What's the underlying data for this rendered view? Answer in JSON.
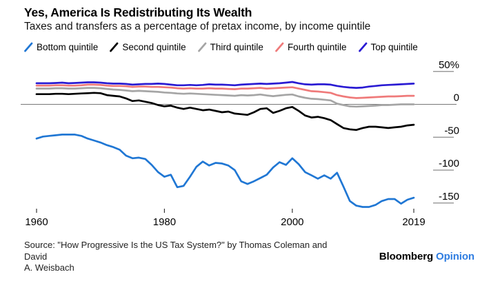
{
  "header": {
    "title": "Yes, America Is Redistributing Its Wealth",
    "subtitle": "Taxes and transfers as a percentage of pretax income, by income quintile"
  },
  "legend": {
    "items": [
      {
        "label": "Bottom quintile",
        "color": "#2077d4"
      },
      {
        "label": "Second quintile",
        "color": "#000000"
      },
      {
        "label": "Third quintile",
        "color": "#a5a5a5"
      },
      {
        "label": "Fourth quintile",
        "color": "#ef7a7a"
      },
      {
        "label": "Top quintile",
        "color": "#2a1bd3"
      }
    ]
  },
  "chart_data": {
    "type": "line",
    "title": "Yes, America Is Redistributing Its Wealth",
    "subtitle": "Taxes and transfers as a percentage of pretax income, by income quintile",
    "xlabel": "",
    "ylabel": "",
    "y_axis_side": "right",
    "grid": false,
    "zero_line": true,
    "legend_position": "top",
    "xlim": [
      1960,
      2019
    ],
    "ylim": [
      -175,
      55
    ],
    "x": [
      1960,
      1961,
      1962,
      1963,
      1964,
      1965,
      1966,
      1967,
      1968,
      1969,
      1970,
      1971,
      1972,
      1973,
      1974,
      1975,
      1976,
      1977,
      1978,
      1979,
      1980,
      1981,
      1982,
      1983,
      1984,
      1985,
      1986,
      1987,
      1988,
      1989,
      1990,
      1991,
      1992,
      1993,
      1994,
      1995,
      1996,
      1997,
      1998,
      1999,
      2000,
      2001,
      2002,
      2003,
      2004,
      2005,
      2006,
      2007,
      2008,
      2009,
      2010,
      2011,
      2012,
      2013,
      2014,
      2015,
      2016,
      2017,
      2018,
      2019
    ],
    "x_ticks": [
      {
        "value": 1960,
        "label": "1960"
      },
      {
        "value": 1980,
        "label": "1980"
      },
      {
        "value": 2000,
        "label": "2000"
      },
      {
        "value": 2019,
        "label": "2019"
      }
    ],
    "y_ticks": [
      {
        "value": 50,
        "label": "50%"
      },
      {
        "value": 0,
        "label": "0"
      },
      {
        "value": -50,
        "label": "-50"
      },
      {
        "value": -100,
        "label": "-100"
      },
      {
        "value": -150,
        "label": "-150"
      }
    ],
    "series": [
      {
        "name": "Bottom quintile",
        "color": "#2077d4",
        "values": [
          -52,
          -49,
          -48,
          -47,
          -46,
          -46,
          -46,
          -48,
          -52,
          -55,
          -58,
          -62,
          -65,
          -69,
          -78,
          -82,
          -81,
          -83,
          -92,
          -103,
          -110,
          -107,
          -126,
          -124,
          -110,
          -95,
          -87,
          -93,
          -89,
          -90,
          -93,
          -100,
          -117,
          -121,
          -117,
          -112,
          -107,
          -96,
          -88,
          -92,
          -82,
          -91,
          -103,
          -108,
          -113,
          -108,
          -113,
          -104,
          -125,
          -147,
          -154,
          -156,
          -156,
          -153,
          -147,
          -144,
          -144,
          -151,
          -145,
          -142
        ]
      },
      {
        "name": "Second quintile",
        "color": "#000000",
        "values": [
          15.5,
          15.5,
          15.5,
          16,
          16,
          15.5,
          16,
          16.5,
          17,
          17.5,
          17,
          14,
          13,
          12,
          9,
          5,
          6,
          4,
          2,
          -1,
          -3,
          -2,
          -5,
          -7,
          -5,
          -7,
          -9,
          -8,
          -10,
          -12,
          -11,
          -14,
          -15,
          -16,
          -12,
          -7,
          -6,
          -13,
          -10,
          -6,
          -4,
          -10,
          -17,
          -20,
          -19,
          -21,
          -24,
          -30,
          -36,
          -38,
          -39,
          -36,
          -34,
          -34,
          -35,
          -36,
          -35,
          -34,
          -32,
          -31
        ]
      },
      {
        "name": "Third quintile",
        "color": "#a5a5a5",
        "values": [
          24,
          24,
          24,
          24.5,
          24.5,
          24,
          24,
          24.5,
          25,
          25,
          24.5,
          23.5,
          22.5,
          22,
          21,
          20,
          20.5,
          20,
          19.5,
          19,
          18,
          17.5,
          16.5,
          16,
          16.5,
          16,
          15.5,
          15,
          14.5,
          14,
          13.5,
          13,
          14,
          13.5,
          14,
          15,
          13.5,
          12.5,
          13.5,
          14.5,
          15,
          12,
          10,
          8.5,
          8,
          7,
          6,
          1,
          -1,
          -3,
          -3.5,
          -3,
          -2.5,
          -2,
          -1,
          -1,
          -0.5,
          0,
          0,
          0
        ]
      },
      {
        "name": "Fourth quintile",
        "color": "#ef7a7a",
        "values": [
          28.5,
          28.5,
          28.5,
          29,
          29,
          28.5,
          28.5,
          29,
          30,
          30,
          29.5,
          28.5,
          28,
          28,
          27.5,
          26.5,
          27,
          27,
          26.5,
          26.5,
          26,
          25.5,
          24.5,
          24,
          24.5,
          24,
          24,
          24.5,
          24,
          24,
          23.5,
          23,
          24,
          24,
          24.5,
          25,
          24,
          24.5,
          25,
          25.5,
          26,
          24,
          22,
          20,
          19.5,
          18.5,
          17.5,
          14,
          12,
          10.5,
          9.5,
          10,
          10.5,
          11,
          11.5,
          12,
          12,
          12.5,
          13,
          13
        ]
      },
      {
        "name": "Top quintile",
        "color": "#2a1bd3",
        "values": [
          32,
          32,
          32,
          32.5,
          33,
          32,
          32.5,
          33,
          33.5,
          33.5,
          33,
          32,
          31.5,
          31.5,
          31,
          30,
          30.5,
          31,
          31,
          31.5,
          31,
          30,
          29,
          29,
          29.5,
          29,
          29.5,
          30.5,
          30,
          30,
          29.5,
          29,
          30,
          30.5,
          31,
          31.5,
          31,
          31.5,
          32,
          33,
          34,
          32,
          30.5,
          30,
          30.5,
          30.5,
          30,
          28,
          26.5,
          25.5,
          25,
          25.5,
          27,
          28,
          29,
          29.5,
          30,
          30.5,
          31,
          31.5
        ]
      }
    ]
  },
  "footer": {
    "source_line1": "Source: \"How Progressive Is the US Tax System?\" by Thomas Coleman and David",
    "source_line2": "A. Weisbach",
    "logo": {
      "brand": "Bloomberg",
      "suffix": "Opinion",
      "suffix_color": "#2f7de1"
    }
  }
}
